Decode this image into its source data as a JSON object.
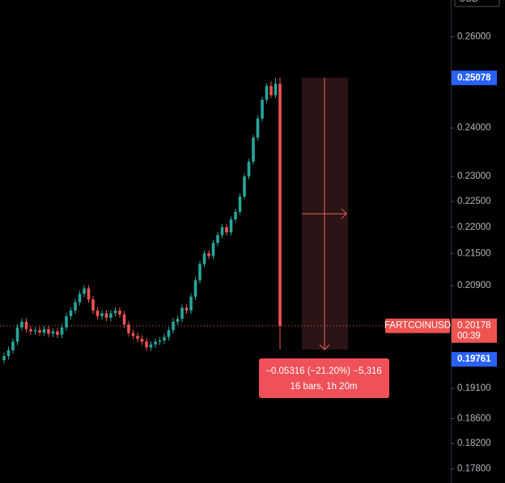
{
  "chart_data": {
    "type": "candlestick",
    "symbol": "FARTCOINUSD",
    "currency": "USD",
    "log_scale": true,
    "grid": false,
    "up_color": "#26a69a",
    "down_color": "#ef5350",
    "ylim": [
      0.1758,
      0.2685
    ],
    "yticks": [
      {
        "value": 0.26,
        "label": "0.26000"
      },
      {
        "value": 0.24,
        "label": "0.24000"
      },
      {
        "value": 0.23,
        "label": "0.23000"
      },
      {
        "value": 0.225,
        "label": "0.22500"
      },
      {
        "value": 0.22,
        "label": "0.22000"
      },
      {
        "value": 0.215,
        "label": "0.21500"
      },
      {
        "value": 0.209,
        "label": "0.20900"
      },
      {
        "value": 0.191,
        "label": "0.19100"
      },
      {
        "value": 0.186,
        "label": "0.18600"
      },
      {
        "value": 0.182,
        "label": "0.18200"
      },
      {
        "value": 0.178,
        "label": "0.17800"
      }
    ],
    "last_price": 0.20178,
    "countdown": "00:39",
    "measure_from": 0.25078,
    "measure_to": 0.19761,
    "measure_change": "−0.05316 (−21.20%) −5,316",
    "measure_span": "16 bars, 1h 20m",
    "candles": [
      [
        0.1958,
        0.1971,
        0.1952,
        0.1965
      ],
      [
        0.1965,
        0.1981,
        0.1959,
        0.1975
      ],
      [
        0.1975,
        0.1996,
        0.1969,
        0.199
      ],
      [
        0.199,
        0.2021,
        0.1984,
        0.2015
      ],
      [
        0.2015,
        0.2031,
        0.2009,
        0.2025
      ],
      [
        0.2025,
        0.2031,
        0.2006,
        0.2012
      ],
      [
        0.2012,
        0.2018,
        0.2002,
        0.2008
      ],
      [
        0.2008,
        0.2016,
        0.2002,
        0.201
      ],
      [
        0.201,
        0.2016,
        0.2,
        0.2006
      ],
      [
        0.2006,
        0.2018,
        0.2,
        0.2012
      ],
      [
        0.2012,
        0.2018,
        0.1998,
        0.2004
      ],
      [
        0.2004,
        0.2014,
        0.1998,
        0.2008
      ],
      [
        0.2008,
        0.2014,
        0.1996,
        0.2002
      ],
      [
        0.2002,
        0.2021,
        0.1996,
        0.2015
      ],
      [
        0.2015,
        0.2041,
        0.2009,
        0.2035
      ],
      [
        0.2035,
        0.2051,
        0.2029,
        0.2045
      ],
      [
        0.2045,
        0.2066,
        0.2039,
        0.206
      ],
      [
        0.206,
        0.2081,
        0.2054,
        0.2075
      ],
      [
        0.2075,
        0.2091,
        0.2069,
        0.2085
      ],
      [
        0.2085,
        0.2091,
        0.2059,
        0.2065
      ],
      [
        0.2065,
        0.2071,
        0.2039,
        0.2045
      ],
      [
        0.2045,
        0.2051,
        0.2029,
        0.2035
      ],
      [
        0.2035,
        0.2046,
        0.2029,
        0.204
      ],
      [
        0.204,
        0.2046,
        0.2026,
        0.2032
      ],
      [
        0.2032,
        0.2046,
        0.2026,
        0.204
      ],
      [
        0.204,
        0.2051,
        0.2034,
        0.2045
      ],
      [
        0.2045,
        0.2051,
        0.2032,
        0.2038
      ],
      [
        0.2038,
        0.2044,
        0.2014,
        0.202
      ],
      [
        0.202,
        0.2026,
        0.1999,
        0.2005
      ],
      [
        0.2005,
        0.2011,
        0.1994,
        0.2
      ],
      [
        0.2,
        0.2006,
        0.1989,
        0.1995
      ],
      [
        0.1995,
        0.2001,
        0.1984,
        0.199
      ],
      [
        0.199,
        0.1996,
        0.1974,
        0.198
      ],
      [
        0.198,
        0.1991,
        0.1974,
        0.1985
      ],
      [
        0.1985,
        0.1996,
        0.1979,
        0.199
      ],
      [
        0.199,
        0.1998,
        0.1984,
        0.1992
      ],
      [
        0.1992,
        0.2004,
        0.1986,
        0.1998
      ],
      [
        0.1998,
        0.2016,
        0.1992,
        0.201
      ],
      [
        0.201,
        0.2031,
        0.2004,
        0.2025
      ],
      [
        0.2025,
        0.2036,
        0.2019,
        0.203
      ],
      [
        0.203,
        0.2056,
        0.2024,
        0.205
      ],
      [
        0.205,
        0.2056,
        0.2039,
        0.2045
      ],
      [
        0.2045,
        0.2076,
        0.2039,
        0.207
      ],
      [
        0.207,
        0.2106,
        0.2064,
        0.21
      ],
      [
        0.21,
        0.2136,
        0.2094,
        0.213
      ],
      [
        0.213,
        0.2156,
        0.2124,
        0.215
      ],
      [
        0.215,
        0.2156,
        0.2139,
        0.2145
      ],
      [
        0.2145,
        0.2176,
        0.2139,
        0.217
      ],
      [
        0.217,
        0.2191,
        0.2164,
        0.2185
      ],
      [
        0.2185,
        0.2206,
        0.2179,
        0.22
      ],
      [
        0.22,
        0.2206,
        0.2184,
        0.219
      ],
      [
        0.219,
        0.2221,
        0.2184,
        0.2215
      ],
      [
        0.2215,
        0.2236,
        0.2209,
        0.223
      ],
      [
        0.223,
        0.2266,
        0.2224,
        0.226
      ],
      [
        0.226,
        0.2306,
        0.2254,
        0.23
      ],
      [
        0.23,
        0.2336,
        0.2294,
        0.233
      ],
      [
        0.233,
        0.2386,
        0.2324,
        0.238
      ],
      [
        0.238,
        0.2426,
        0.2374,
        0.242
      ],
      [
        0.242,
        0.2466,
        0.2414,
        0.246
      ],
      [
        0.246,
        0.2496,
        0.2454,
        0.249
      ],
      [
        0.249,
        0.25,
        0.2464,
        0.247
      ],
      [
        0.247,
        0.2508,
        0.2464,
        0.2495
      ],
      [
        0.2495,
        0.2508,
        0.19761,
        0.20178
      ]
    ]
  }
}
